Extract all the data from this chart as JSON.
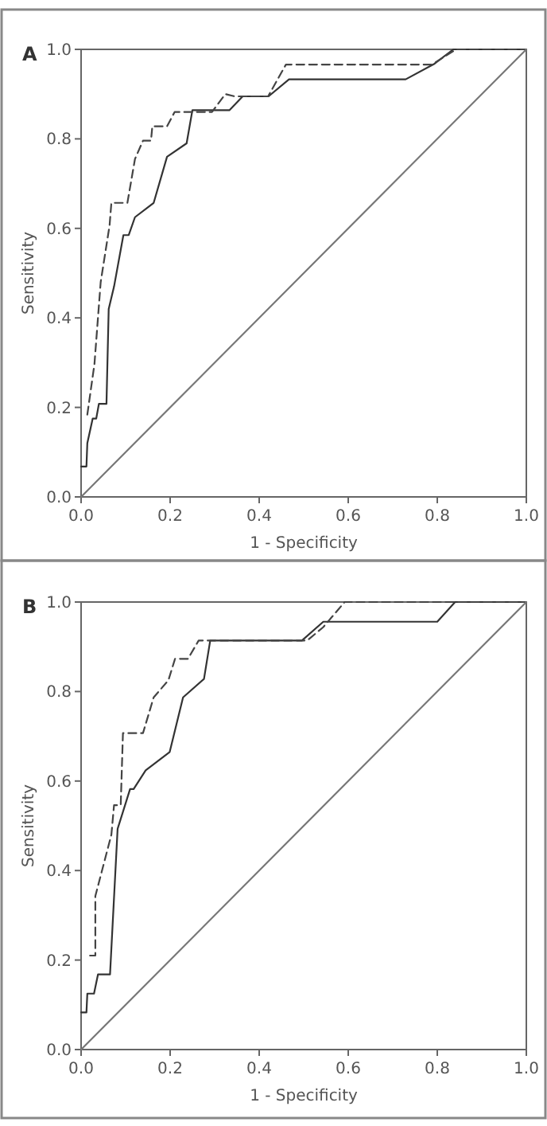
{
  "chart_data": [
    {
      "type": "line",
      "title": "A",
      "xlabel": "1 - Specificity",
      "ylabel": "Sensitivity",
      "xlim": [
        0,
        1
      ],
      "ylim": [
        0,
        1
      ],
      "xticks": [
        {
          "value": 0,
          "label": "0.0"
        },
        {
          "value": 0.2,
          "label": "0.2"
        },
        {
          "value": 0.4,
          "label": "0.4"
        },
        {
          "value": 0.6,
          "label": "0.6"
        },
        {
          "value": 0.8,
          "label": "0.8"
        },
        {
          "value": 1,
          "label": "1.0"
        }
      ],
      "yticks": [
        {
          "value": 0,
          "label": "0.0"
        },
        {
          "value": 0.2,
          "label": "0.2"
        },
        {
          "value": 0.4,
          "label": "0.4"
        },
        {
          "value": 0.6,
          "label": "0.6"
        },
        {
          "value": 0.8,
          "label": "0.8"
        },
        {
          "value": 1,
          "label": "1.0"
        }
      ],
      "grid": false,
      "marker": "none",
      "series": [
        {
          "color": "#333333",
          "line_style": "solid",
          "x": [
            0,
            0.012,
            0.014,
            0.026,
            0.034,
            0.04,
            0.057,
            0.062,
            0.074,
            0.095,
            0.107,
            0.121,
            0.163,
            0.193,
            0.237,
            0.25,
            0.333,
            0.363,
            0.421,
            0.467,
            0.729,
            0.794,
            0.836,
            1
          ],
          "values": [
            0.068,
            0.068,
            0.12,
            0.175,
            0.175,
            0.208,
            0.208,
            0.42,
            0.47,
            0.585,
            0.585,
            0.625,
            0.657,
            0.76,
            0.79,
            0.864,
            0.864,
            0.895,
            0.895,
            0.933,
            0.933,
            0.968,
            1,
            1
          ]
        },
        {
          "color": "#444444",
          "line_style": "dashed",
          "x": [
            0.014,
            0.03,
            0.044,
            0.064,
            0.068,
            0.104,
            0.121,
            0.139,
            0.157,
            0.16,
            0.193,
            0.21,
            0.294,
            0.324,
            0.345,
            0.42,
            0.46,
            0.788,
            0.842,
            1
          ],
          "values": [
            0.184,
            0.297,
            0.48,
            0.607,
            0.657,
            0.657,
            0.755,
            0.796,
            0.796,
            0.828,
            0.828,
            0.86,
            0.86,
            0.9,
            0.895,
            0.895,
            0.966,
            0.966,
            1,
            1
          ]
        },
        {
          "color": "#777777",
          "line_style": "solid",
          "x": [
            0,
            1
          ],
          "values": [
            0,
            1
          ]
        }
      ]
    },
    {
      "type": "line",
      "title": "B",
      "xlabel": "1 - Specificity",
      "ylabel": "Sensitivity",
      "xlim": [
        0,
        1
      ],
      "ylim": [
        0,
        1
      ],
      "xticks": [
        {
          "value": 0,
          "label": "0.0"
        },
        {
          "value": 0.2,
          "label": "0.2"
        },
        {
          "value": 0.4,
          "label": "0.4"
        },
        {
          "value": 0.6,
          "label": "0.6"
        },
        {
          "value": 0.8,
          "label": "0.8"
        },
        {
          "value": 1,
          "label": "1.0"
        }
      ],
      "yticks": [
        {
          "value": 0,
          "label": "0.0"
        },
        {
          "value": 0.2,
          "label": "0.2"
        },
        {
          "value": 0.4,
          "label": "0.4"
        },
        {
          "value": 0.6,
          "label": "0.6"
        },
        {
          "value": 0.8,
          "label": "0.8"
        },
        {
          "value": 1,
          "label": "1.0"
        }
      ],
      "grid": false,
      "marker": "none",
      "series": [
        {
          "color": "#333333",
          "line_style": "solid",
          "x": [
            0,
            0.012,
            0.014,
            0.029,
            0.038,
            0.065,
            0.082,
            0.11,
            0.118,
            0.145,
            0.199,
            0.229,
            0.276,
            0.29,
            0.496,
            0.544,
            0.8,
            0.84,
            1
          ],
          "values": [
            0.083,
            0.083,
            0.125,
            0.125,
            0.168,
            0.168,
            0.493,
            0.582,
            0.582,
            0.624,
            0.665,
            0.787,
            0.828,
            0.914,
            0.914,
            0.956,
            0.956,
            1,
            1
          ]
        },
        {
          "color": "#444444",
          "line_style": "dashed",
          "x": [
            0.02,
            0.032,
            0.032,
            0.068,
            0.074,
            0.089,
            0.094,
            0.139,
            0.163,
            0.196,
            0.211,
            0.24,
            0.264,
            0.508,
            0.544,
            0.592,
            1
          ],
          "values": [
            0.21,
            0.21,
            0.343,
            0.48,
            0.546,
            0.546,
            0.707,
            0.707,
            0.787,
            0.825,
            0.873,
            0.873,
            0.914,
            0.914,
            0.944,
            1,
            1
          ]
        },
        {
          "color": "#777777",
          "line_style": "solid",
          "x": [
            0,
            1
          ],
          "values": [
            0,
            1
          ]
        }
      ]
    }
  ]
}
